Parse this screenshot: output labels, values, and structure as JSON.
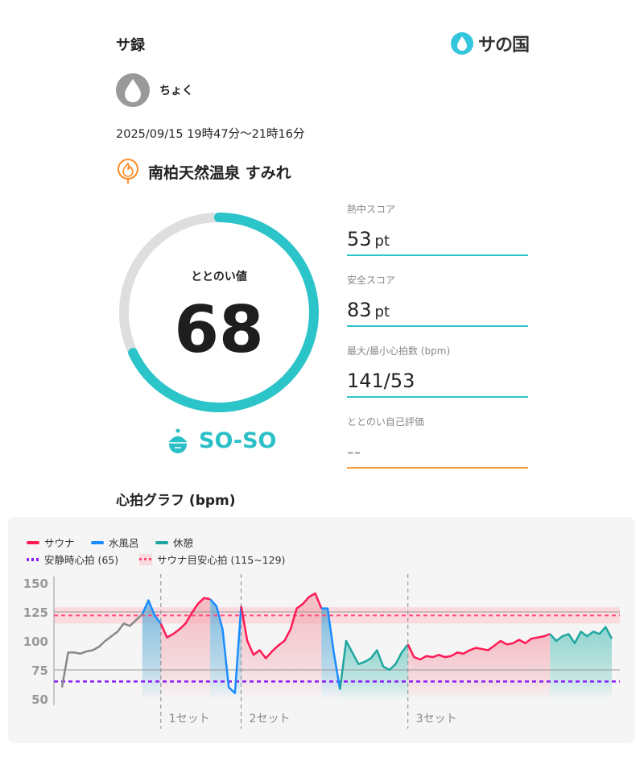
{
  "header": {
    "title": "サ録",
    "logo_text": "サの国"
  },
  "user": {
    "name": "ちょく"
  },
  "session": {
    "datetime": "2025/09/15 19時47分〜21時16分",
    "facility": "南柏天然温泉 すみれ"
  },
  "totonoi": {
    "label": "ととのい値",
    "value": "68",
    "score_percent": 68,
    "mood": "SO-SO"
  },
  "metrics": [
    {
      "label": "熱中スコア",
      "value": "53",
      "unit": "pt"
    },
    {
      "label": "安全スコア",
      "value": "83",
      "unit": "pt"
    },
    {
      "label": "最大/最小心拍数 (bpm)",
      "value": "141/53",
      "unit": ""
    },
    {
      "label": "ととのい自己評価",
      "value": "--",
      "unit": ""
    }
  ],
  "colors": {
    "accent": "#2bc4c9",
    "sauna": "#ff1a55",
    "water": "#1a8cff",
    "rest": "#1fa6a0",
    "idle": "#888888",
    "resting": "#8a1aff",
    "self_eval": "#ff9a3c"
  },
  "chart_data": {
    "type": "line",
    "title": "心拍グラフ (bpm)",
    "ylim": [
      50,
      150
    ],
    "yticks": [
      50,
      75,
      100,
      125,
      150
    ],
    "gridlines": [
      75,
      125
    ],
    "legend": {
      "sauna": "サウナ",
      "water": "水風呂",
      "rest": "休憩",
      "resting_hr": "安静時心拍 (65)",
      "target_hr": "サウナ目安心拍 (115~129)"
    },
    "resting_hr": 65,
    "target_band": [
      115,
      129
    ],
    "target_line": 122,
    "sets": [
      {
        "label": "1セット",
        "time": "20:03"
      },
      {
        "label": "2セット",
        "time": "20:16"
      },
      {
        "label": "3セット",
        "time": "20:43"
      }
    ],
    "phases": [
      {
        "type": "idle",
        "start": "19:47",
        "end": "20:00"
      },
      {
        "type": "water",
        "start": "20:00",
        "end": "20:03"
      },
      {
        "type": "sauna",
        "start": "20:03",
        "end": "20:11"
      },
      {
        "type": "water",
        "start": "20:11",
        "end": "20:16"
      },
      {
        "type": "sauna",
        "start": "20:16",
        "end": "20:29"
      },
      {
        "type": "water",
        "start": "20:29",
        "end": "20:32"
      },
      {
        "type": "rest",
        "start": "20:32",
        "end": "20:43"
      },
      {
        "type": "sauna",
        "start": "20:43",
        "end": "21:06"
      },
      {
        "type": "rest",
        "start": "21:06",
        "end": "21:16"
      }
    ],
    "points": [
      [
        "19:47",
        60
      ],
      [
        "19:48",
        90
      ],
      [
        "19:49",
        90
      ],
      [
        "19:50",
        89
      ],
      [
        "19:51",
        91
      ],
      [
        "19:52",
        92
      ],
      [
        "19:53",
        95
      ],
      [
        "19:54",
        100
      ],
      [
        "19:55",
        104
      ],
      [
        "19:56",
        108
      ],
      [
        "19:57",
        115
      ],
      [
        "19:58",
        113
      ],
      [
        "19:59",
        118
      ],
      [
        "20:00",
        123
      ],
      [
        "20:01",
        135
      ],
      [
        "20:02",
        122
      ],
      [
        "20:03",
        115
      ],
      [
        "20:04",
        103
      ],
      [
        "20:05",
        106
      ],
      [
        "20:06",
        110
      ],
      [
        "20:07",
        115
      ],
      [
        "20:08",
        124
      ],
      [
        "20:09",
        132
      ],
      [
        "20:10",
        137
      ],
      [
        "20:11",
        136
      ],
      [
        "20:12",
        130
      ],
      [
        "20:13",
        110
      ],
      [
        "20:14",
        60
      ],
      [
        "20:15",
        55
      ],
      [
        "20:16",
        130
      ],
      [
        "20:17",
        100
      ],
      [
        "20:18",
        88
      ],
      [
        "20:19",
        92
      ],
      [
        "20:20",
        85
      ],
      [
        "20:21",
        91
      ],
      [
        "20:22",
        96
      ],
      [
        "20:23",
        100
      ],
      [
        "20:24",
        110
      ],
      [
        "20:25",
        128
      ],
      [
        "20:26",
        132
      ],
      [
        "20:27",
        138
      ],
      [
        "20:28",
        141
      ],
      [
        "20:29",
        128
      ],
      [
        "20:30",
        128
      ],
      [
        "20:31",
        90
      ],
      [
        "20:32",
        58
      ],
      [
        "20:33",
        100
      ],
      [
        "20:34",
        90
      ],
      [
        "20:35",
        80
      ],
      [
        "20:36",
        82
      ],
      [
        "20:37",
        85
      ],
      [
        "20:38",
        92
      ],
      [
        "20:39",
        78
      ],
      [
        "20:40",
        75
      ],
      [
        "20:41",
        80
      ],
      [
        "20:42",
        90
      ],
      [
        "20:43",
        97
      ],
      [
        "20:44",
        86
      ],
      [
        "20:45",
        84
      ],
      [
        "20:46",
        87
      ],
      [
        "20:47",
        86
      ],
      [
        "20:48",
        88
      ],
      [
        "20:49",
        86
      ],
      [
        "20:50",
        87
      ],
      [
        "20:51",
        90
      ],
      [
        "20:52",
        89
      ],
      [
        "20:53",
        92
      ],
      [
        "20:54",
        94
      ],
      [
        "20:55",
        93
      ],
      [
        "20:56",
        92
      ],
      [
        "20:57",
        96
      ],
      [
        "20:58",
        100
      ],
      [
        "20:59",
        97
      ],
      [
        "21:00",
        98
      ],
      [
        "21:01",
        101
      ],
      [
        "21:02",
        98
      ],
      [
        "21:03",
        102
      ],
      [
        "21:04",
        103
      ],
      [
        "21:05",
        104
      ],
      [
        "21:06",
        106
      ],
      [
        "21:07",
        100
      ],
      [
        "21:08",
        104
      ],
      [
        "21:09",
        106
      ],
      [
        "21:10",
        98
      ],
      [
        "21:11",
        108
      ],
      [
        "21:12",
        104
      ],
      [
        "21:13",
        108
      ],
      [
        "21:14",
        106
      ],
      [
        "21:15",
        112
      ],
      [
        "21:16",
        102
      ]
    ]
  }
}
